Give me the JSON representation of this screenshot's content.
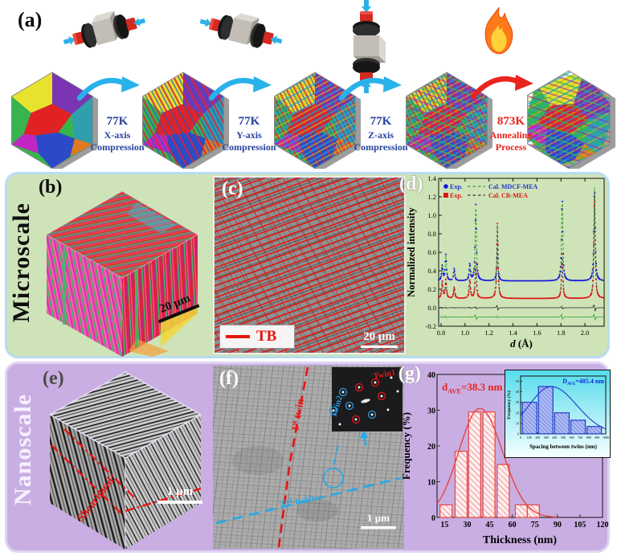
{
  "panels": {
    "a": {
      "label": "(a)"
    },
    "b": {
      "label": "(b)",
      "scale_bar": "20 μm"
    },
    "c": {
      "label": "(c)",
      "legend": "TB",
      "scale_bar": "20 μm"
    },
    "d": {
      "label": "(d)"
    },
    "e": {
      "label": "(e)",
      "annotation": "Shearband",
      "scale_bar": "1 μm"
    },
    "f": {
      "label": "(f)",
      "scale_bar": "1 μm",
      "twin1": "Twin1",
      "twin2": "Twin2",
      "first_twin": {
        "num": "1",
        "sup": "st",
        "word": "twin"
      },
      "second_twin": {
        "num": "2",
        "sup": "nd",
        "word": "twin"
      }
    },
    "g": {
      "label": "(g)"
    }
  },
  "process_steps": [
    {
      "line1": "77K",
      "line2": "X-axis",
      "line3": "Compression",
      "color": "#26429e"
    },
    {
      "line1": "77K",
      "line2": "Y-axis",
      "line3": "Compression",
      "color": "#26429e"
    },
    {
      "line1": "77K",
      "line2": "Z-axis",
      "line3": "Compression",
      "color": "#26429e"
    },
    {
      "line1": "873K",
      "line2": "Annealing",
      "line3": "Process",
      "color": "#e8231c"
    }
  ],
  "sections": {
    "micro": {
      "label": "Microscale",
      "bg": "#cfe3b8",
      "border": "#b7dcf2"
    },
    "nano": {
      "label": "Nanoscale",
      "bg": "#c9aee3",
      "border": "#e0d3f2"
    }
  },
  "colors": {
    "tb_red": "#e8140c",
    "arrow_cyan": "#29b2ea",
    "arrow_red": "#e8251d",
    "exp_blue": "#1515dd",
    "exp_red": "#e01414",
    "cal_green": "#2ba02b"
  },
  "chart_data": [
    {
      "id": "neutron-diffraction",
      "type": "line",
      "xlabel_parts": {
        "italic": "d",
        "rest": " (Å)"
      },
      "ylabel": "Normalized intensity",
      "xlim": [
        0.78,
        2.16
      ],
      "ylim": [
        -0.2,
        1.4
      ],
      "xticks": [
        0.8,
        1.0,
        1.2,
        1.4,
        1.6,
        1.8,
        2.0
      ],
      "yticks": [
        -0.2,
        0.0,
        0.2,
        0.4,
        0.6,
        0.8,
        1.0,
        1.2,
        1.4
      ],
      "peak_width": 0.006,
      "peak_positions": [
        0.81,
        0.84,
        0.91,
        1.04,
        1.09,
        1.27,
        1.81,
        2.08
      ],
      "legend": [
        {
          "exp_label": "Exp.",
          "cal_label": "Cal. MDCF-MEA",
          "marker": "circle",
          "exp_color": "#1515dd",
          "cal_color": "#2ba02b",
          "text_color": "#1b35c8"
        },
        {
          "exp_label": "Exp.",
          "cal_label": "Cal. CR-MEA",
          "marker": "square",
          "exp_color": "#e01414",
          "cal_color": "#3a3a3a",
          "text_color": "#e01414"
        }
      ],
      "series": [
        {
          "name": "MDCF-MEA",
          "kind": "pattern",
          "baseline": 0.29,
          "peak_heights": [
            0.16,
            0.28,
            0.13,
            0.18,
            0.83,
            0.34,
            0.9,
            1.02
          ],
          "exp_color": "#1515dd",
          "cal_color": "#2ba02b"
        },
        {
          "name": "CR-MEA",
          "kind": "pattern",
          "baseline": 0.1,
          "peak_heights": [
            0.18,
            0.2,
            0.12,
            0.2,
            0.38,
            0.81,
            0.48,
            1.12
          ],
          "exp_color": "#e01414",
          "cal_color": "#3a3a3a"
        },
        {
          "name": "difference-CR",
          "kind": "difference",
          "baseline": 0.0,
          "ref": 1,
          "color": "#222222"
        },
        {
          "name": "difference-MDCF",
          "kind": "difference",
          "baseline": -0.1,
          "ref": 0,
          "color": "#2ba02b"
        }
      ]
    },
    {
      "id": "twin-thickness-distribution",
      "type": "bar",
      "xlabel": "Thickness (nm)",
      "ylabel": "Frequency (%)",
      "xlim": [
        10,
        120
      ],
      "ylim": [
        0,
        40
      ],
      "xticks": [
        15,
        30,
        45,
        60,
        75,
        90,
        105,
        120
      ],
      "yticks": [
        0,
        10,
        20,
        30,
        40
      ],
      "annotation_parts": {
        "main": "d",
        "sub": "AVE",
        "rest": "=38.3 nm"
      },
      "bars": [
        {
          "x0": 12,
          "x1": 20,
          "v": 3.5
        },
        {
          "x0": 22,
          "x1": 30,
          "v": 18.5
        },
        {
          "x0": 31,
          "x1": 39,
          "v": 29.5
        },
        {
          "x0": 40.5,
          "x1": 48.5,
          "v": 29.5
        },
        {
          "x0": 50,
          "x1": 58,
          "v": 14.8
        },
        {
          "x0": 62,
          "x1": 70,
          "v": 3.5
        },
        {
          "x0": 70,
          "x1": 78,
          "v": 3.5
        }
      ],
      "fit_curve": {
        "mu": 38.5,
        "sigma_left": 14,
        "sigma_right": 15,
        "amp": 30.5
      },
      "bar_color": "#e8453c"
    },
    {
      "id": "twin-spacing-distribution",
      "type": "bar",
      "xlabel": "Spacing between twins (nm)",
      "ylabel": "Frequency (%)",
      "xlim": [
        0,
        1000
      ],
      "ylim": [
        0,
        55
      ],
      "xticks": [
        0,
        100,
        200,
        300,
        400,
        500,
        600,
        700,
        800,
        900,
        1000
      ],
      "yticks": [
        0,
        10,
        20,
        30,
        40,
        50
      ],
      "annotation_parts": {
        "main": "D",
        "sub": "AVE",
        "rest": "=405.4 nm"
      },
      "bars": [
        {
          "x0": 20,
          "x1": 190,
          "v": 30
        },
        {
          "x0": 210,
          "x1": 380,
          "v": 45
        },
        {
          "x0": 400,
          "x1": 570,
          "v": 20
        },
        {
          "x0": 590,
          "x1": 760,
          "v": 13
        },
        {
          "x0": 780,
          "x1": 950,
          "v": 7
        }
      ],
      "fit_curve": {
        "mu": 360,
        "sigma_left": 260,
        "sigma_right": 300,
        "amp": 45
      },
      "bar_color": "#4663d8"
    }
  ]
}
